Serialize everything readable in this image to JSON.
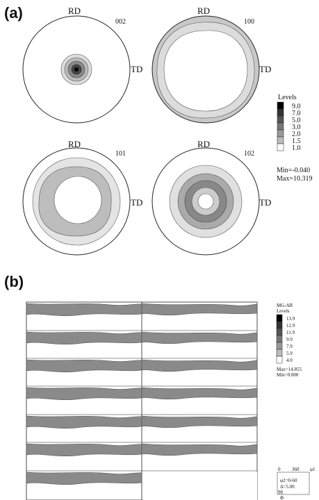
{
  "panels": {
    "a_label": "(a)",
    "b_label": "(b)"
  },
  "pole_figures": [
    {
      "index": "002",
      "rd": "RD",
      "td": "TD"
    },
    {
      "index": "100",
      "rd": "RD",
      "td": "TD"
    },
    {
      "index": "101",
      "rd": "RD",
      "td": "TD"
    },
    {
      "index": "102",
      "rd": "RD",
      "td": "TD"
    }
  ],
  "legend_a": {
    "title": "Levels",
    "levels": [
      "9.0",
      "7.0",
      "5.0",
      "3.0",
      "2.0",
      "1.5",
      "1.0"
    ],
    "min": "Min=-0.040",
    "max": "Max=10.319"
  },
  "legend_b": {
    "title_line1": "MG-AR",
    "title_line2": "Levels",
    "levels": [
      "13.9",
      "12.9",
      "11.9",
      "9.9",
      "7.9",
      "5.9",
      "4.0"
    ],
    "max": "Max=14.855",
    "min": "Min=0.000"
  },
  "odf_key": {
    "zero": "0",
    "max": "360",
    "phi1": "φ1",
    "phi2": "φ2=0-60",
    "step": "Δ=5.00",
    "ninety": "90",
    "big_phi": "Φ"
  },
  "colors": {
    "level_fills": [
      "#000000",
      "#333333",
      "#555555",
      "#777777",
      "#999999",
      "#bbbbbb",
      "#ffffff"
    ]
  }
}
